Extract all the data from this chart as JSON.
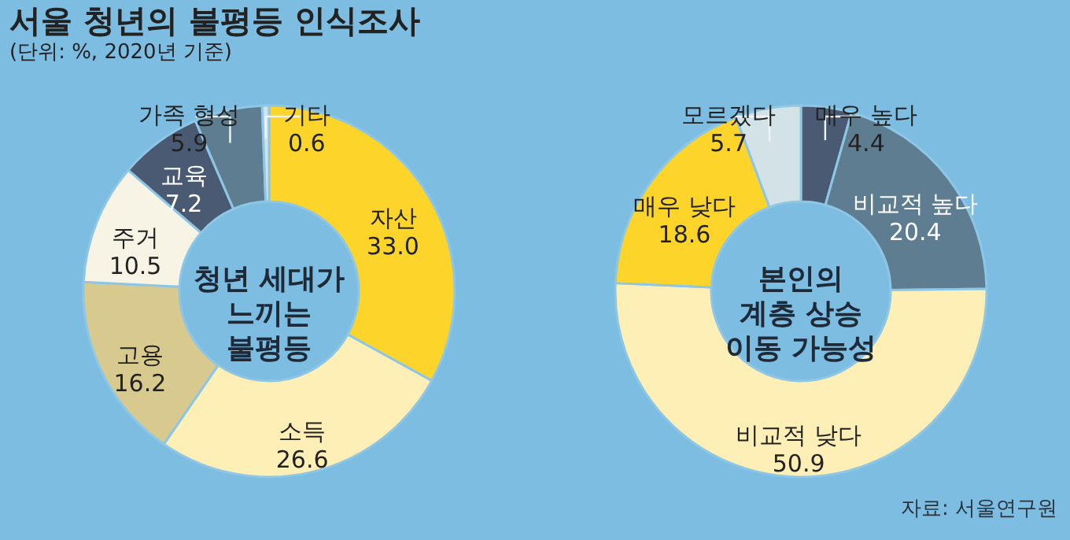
{
  "chart_data": [
    {
      "type": "donut",
      "title": "서울 청년의 불평등 인식조사",
      "subtitle": "(단위: %, 2020년 기준)",
      "categories": [
        "자산",
        "소득",
        "고용",
        "주거",
        "교육",
        "가족 형성",
        "기타"
      ],
      "values": [
        33.0,
        26.6,
        16.2,
        10.5,
        7.2,
        5.9,
        0.6
      ],
      "value_labels": [
        "33.0",
        "26.6",
        "16.2",
        "10.5",
        "7.2",
        "5.9",
        "0.6"
      ],
      "colors": [
        "#fdd52a",
        "#fdefb5",
        "#d8c98e",
        "#f7f4e6",
        "#4a5a72",
        "#5f7d91",
        "#d3e2e6"
      ],
      "legend": false,
      "annotations": [
        "청년 세대가\n느끼는\n불평등"
      ]
    },
    {
      "type": "donut",
      "categories": [
        "매우 높다",
        "비교적 높다",
        "비교적 낮다",
        "매우 낮다",
        "모르겠다"
      ],
      "values": [
        4.4,
        20.4,
        50.9,
        18.6,
        5.7
      ],
      "value_labels": [
        "4.4",
        "20.4",
        "50.9",
        "18.6",
        "5.7"
      ],
      "colors": [
        "#4a5a72",
        "#5f7d91",
        "#fdefb5",
        "#fdd52a",
        "#d3e2e6"
      ],
      "legend": false,
      "annotations": [
        "본인의\n계층 상승\n이동 가능성",
        "자료: 서울연구원"
      ]
    }
  ]
}
